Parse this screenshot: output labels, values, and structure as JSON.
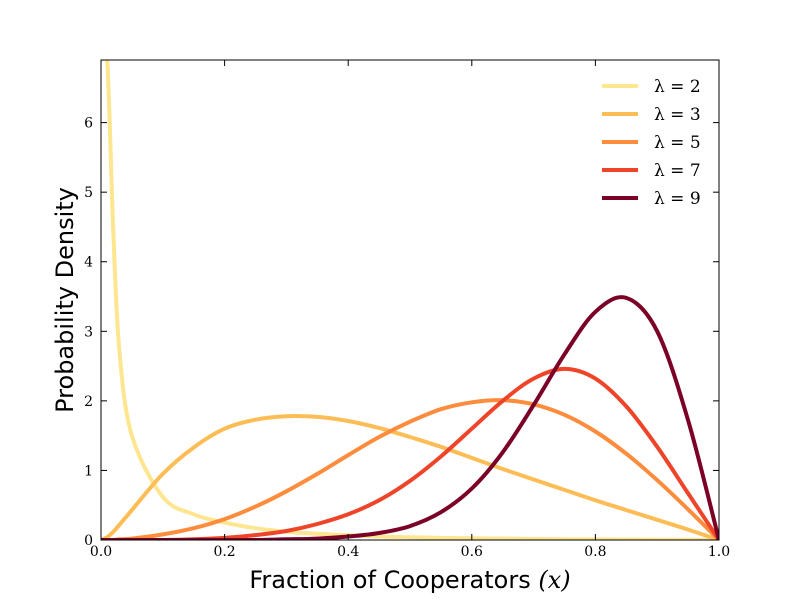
{
  "chart_data": {
    "type": "line",
    "title": "",
    "xlabel": "Fraction of Cooperators ",
    "xlabel_math": "(x)",
    "ylabel": "Probability Density",
    "xlim": [
      0.0,
      1.0
    ],
    "ylim": [
      0,
      6.9
    ],
    "xticks": [
      0.0,
      0.2,
      0.4,
      0.6,
      0.8,
      1.0
    ],
    "xtick_labels": [
      "0.0",
      "0.2",
      "0.4",
      "0.6",
      "0.8",
      "1.0"
    ],
    "yticks": [
      0,
      1,
      2,
      3,
      4,
      5,
      6
    ],
    "ytick_labels": [
      "0",
      "1",
      "2",
      "3",
      "4",
      "5",
      "6"
    ],
    "grid": false,
    "legend_position": "top-right",
    "x": [
      0.0,
      0.01,
      0.02,
      0.03,
      0.05,
      0.1,
      0.15,
      0.2,
      0.25,
      0.3,
      0.35,
      0.4,
      0.45,
      0.5,
      0.55,
      0.6,
      0.65,
      0.7,
      0.75,
      0.8,
      0.85,
      0.9,
      0.95,
      1.0
    ],
    "series": [
      {
        "name": "λ = 2",
        "color": "#fee58f",
        "values": [
          6.9,
          6.9,
          4.4,
          2.7,
          1.5,
          0.62,
          0.37,
          0.25,
          0.17,
          0.12,
          0.09,
          0.07,
          0.05,
          0.04,
          0.03,
          0.025,
          0.02,
          0.015,
          0.012,
          0.01,
          0.007,
          0.005,
          0.003,
          0.0
        ]
      },
      {
        "name": "λ = 3",
        "color": "#fdbd56",
        "values": [
          0.0,
          0.04,
          0.12,
          0.22,
          0.43,
          0.95,
          1.33,
          1.6,
          1.73,
          1.78,
          1.77,
          1.71,
          1.61,
          1.48,
          1.34,
          1.18,
          1.02,
          0.87,
          0.72,
          0.57,
          0.43,
          0.29,
          0.15,
          0.0
        ]
      },
      {
        "name": "λ = 5",
        "color": "#fd8c3c",
        "values": [
          0.0,
          0.0,
          0.0,
          0.01,
          0.02,
          0.08,
          0.17,
          0.3,
          0.48,
          0.7,
          0.95,
          1.22,
          1.48,
          1.7,
          1.88,
          1.98,
          2.01,
          1.95,
          1.8,
          1.56,
          1.24,
          0.86,
          0.44,
          0.0
        ]
      },
      {
        "name": "λ = 7",
        "color": "#ee4429",
        "values": [
          0.0,
          0.0,
          0.0,
          0.0,
          0.0,
          0.0,
          0.01,
          0.03,
          0.07,
          0.13,
          0.23,
          0.37,
          0.57,
          0.85,
          1.2,
          1.6,
          2.0,
          2.32,
          2.46,
          2.32,
          1.92,
          1.34,
          0.67,
          0.0
        ]
      },
      {
        "name": "λ = 9",
        "color": "#7c0127",
        "values": [
          0.0,
          0.0,
          0.0,
          0.0,
          0.0,
          0.0,
          0.0,
          0.0,
          0.0,
          0.01,
          0.02,
          0.05,
          0.1,
          0.2,
          0.4,
          0.74,
          1.26,
          1.94,
          2.67,
          3.28,
          3.48,
          3.0,
          1.72,
          0.0
        ]
      }
    ]
  }
}
